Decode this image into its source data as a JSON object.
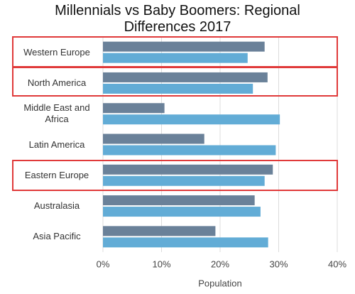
{
  "chart_data": {
    "type": "bar",
    "orientation": "horizontal",
    "title": "Millennials vs Baby Boomers: Regional Differences 2017",
    "xlabel": "Population",
    "categories": [
      "Western Europe",
      "North America",
      "Middle East and Africa",
      "Latin America",
      "Eastern Europe",
      "Australasia",
      "Asia Pacific"
    ],
    "series": [
      {
        "color": "#6a8199",
        "values": [
          27.6,
          28.1,
          10.5,
          17.3,
          29.0,
          25.9,
          19.2
        ]
      },
      {
        "color": "#62acd6",
        "values": [
          24.7,
          25.6,
          30.2,
          29.5,
          27.6,
          26.9,
          28.2
        ]
      }
    ],
    "xlim": [
      0,
      40
    ],
    "xticks": [
      {
        "value": 0,
        "label": "0%"
      },
      {
        "value": 10,
        "label": "10%"
      },
      {
        "value": 20,
        "label": "20%"
      },
      {
        "value": 30,
        "label": "30%"
      },
      {
        "value": 40,
        "label": "40%"
      }
    ],
    "grid": true
  }
}
